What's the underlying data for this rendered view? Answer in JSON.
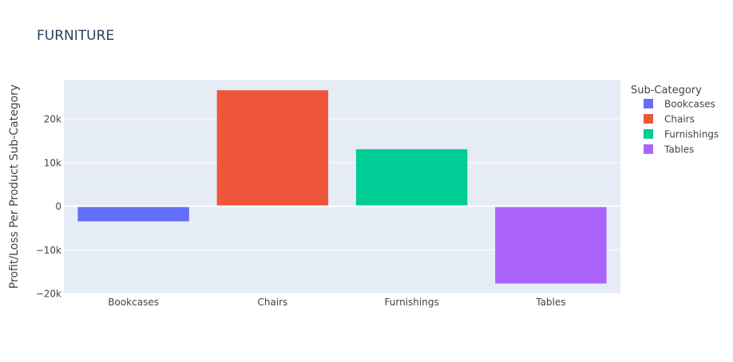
{
  "chart_data": {
    "type": "bar",
    "title": "FURNITURE",
    "xlabel": "",
    "ylabel": "Profit/Loss Per Product Sub-Category",
    "categories": [
      "Bookcases",
      "Chairs",
      "Furnishings",
      "Tables"
    ],
    "values": [
      -3473,
      26590,
      13059,
      -17725
    ],
    "colors": [
      "#636efa",
      "#EF553B",
      "#00cc96",
      "#ab63fa"
    ],
    "ylim": [
      -20000,
      29000
    ],
    "yticks": [
      {
        "value": -20000,
        "label": "−20k"
      },
      {
        "value": -10000,
        "label": "−10k"
      },
      {
        "value": 0,
        "label": "0"
      },
      {
        "value": 10000,
        "label": "10k"
      },
      {
        "value": 20000,
        "label": "20k"
      }
    ],
    "grid": true,
    "legend": {
      "title": "Sub-Category",
      "placement": "right",
      "entries": [
        "Bookcases",
        "Chairs",
        "Furnishings",
        "Tables"
      ]
    },
    "plot_bgcolor": "#e5ecf6",
    "text_color": "#444444",
    "title_color": "#2a3f5f"
  }
}
